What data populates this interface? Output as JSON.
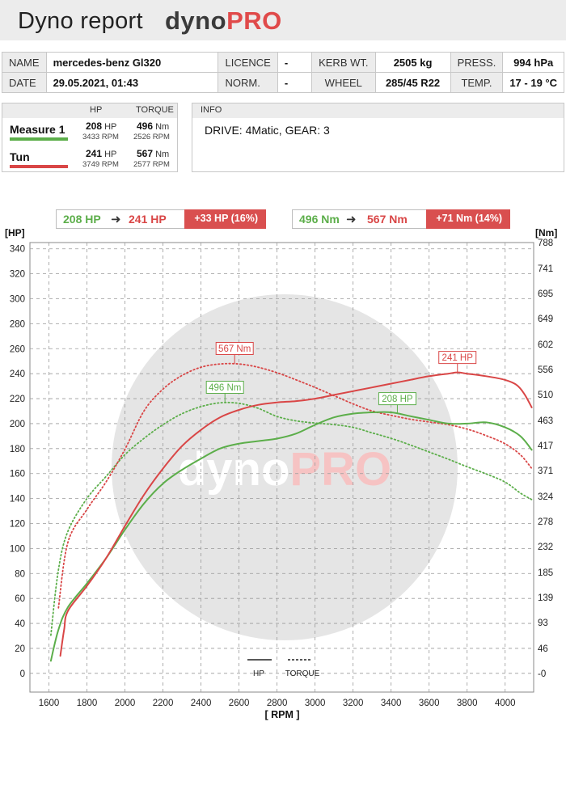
{
  "header": {
    "title": "Dyno report",
    "brand_dyno": "dyno",
    "brand_pro": "PRO"
  },
  "info": {
    "name_label": "NAME",
    "name": "mercedes-benz Gl320",
    "licence_label": "LICENCE",
    "licence": "-",
    "kerb_label": "KERB WT.",
    "kerb": "2505 kg",
    "press_label": "PRESS.",
    "press": "994 hPa",
    "date_label": "DATE",
    "date": "29.05.2021, 01:43",
    "norm_label": "NORM.",
    "norm": "-",
    "wheel_label": "WHEEL",
    "wheel": "285/45 R22",
    "temp_label": "TEMP.",
    "temp": "17 - 19 °C"
  },
  "measures": {
    "hp_label": "HP",
    "torque_label": "TORQUE",
    "items": [
      {
        "name": "Measure 1",
        "color": "#5cae4a",
        "hp": "208",
        "hp_unit": "HP",
        "hp_rpm": "3433 RPM",
        "torque": "496",
        "torque_unit": "Nm",
        "torque_rpm": "2526 RPM"
      },
      {
        "name": "Tun",
        "color": "#d94646",
        "hp": "241",
        "hp_unit": "HP",
        "hp_rpm": "3749 RPM",
        "torque": "567",
        "torque_unit": "Nm",
        "torque_rpm": "2577 RPM"
      }
    ]
  },
  "infobox": {
    "label": "INFO",
    "text": "DRIVE: 4Matic,  GEAR: 3"
  },
  "summary": {
    "hp": {
      "from": "208 HP",
      "to": "241 HP",
      "delta": "+33 HP  (16%)"
    },
    "torque": {
      "from": "496 Nm",
      "to": "567 Nm",
      "delta": "+71 Nm  (14%)"
    }
  },
  "chart_data": {
    "type": "line",
    "xlabel": "[ RPM ]",
    "ylabel_left": "[HP]",
    "ylabel_right": "[Nm]",
    "xlim": [
      1500,
      4150
    ],
    "ylim_left": [
      -15,
      345
    ],
    "ylim_right": [
      -34,
      788
    ],
    "x_ticks": [
      1600,
      1800,
      2000,
      2200,
      2400,
      2600,
      2800,
      3000,
      3200,
      3400,
      3600,
      3800,
      4000
    ],
    "y_ticks_left": [
      0,
      20,
      40,
      60,
      80,
      100,
      120,
      140,
      160,
      180,
      200,
      220,
      240,
      260,
      280,
      300,
      320,
      340
    ],
    "y_ticks_right": [
      {
        "v": 0,
        "label": "-0"
      },
      {
        "v": 46,
        "label": "46"
      },
      {
        "v": 93,
        "label": "93"
      },
      {
        "v": 139,
        "label": "139"
      },
      {
        "v": 185,
        "label": "185"
      },
      {
        "v": 232,
        "label": "232"
      },
      {
        "v": 278,
        "label": "278"
      },
      {
        "v": 324,
        "label": "324"
      },
      {
        "v": 371,
        "label": "371"
      },
      {
        "v": 417,
        "label": "417"
      },
      {
        "v": 463,
        "label": "463"
      },
      {
        "v": 510,
        "label": "510"
      },
      {
        "v": 556,
        "label": "556"
      },
      {
        "v": 602,
        "label": "602"
      },
      {
        "v": 649,
        "label": "649"
      },
      {
        "v": 695,
        "label": "695"
      },
      {
        "v": 741,
        "label": "741"
      },
      {
        "v": 788,
        "label": "788"
      }
    ],
    "grid": true,
    "legend": {
      "position": "bottom-center",
      "hp": "HP",
      "torque": "TORQUE"
    },
    "watermark": {
      "dyno": "dyno",
      "pro": "PRO"
    },
    "series": [
      {
        "name": "Measure 1",
        "kind": "HP",
        "axis": "left",
        "color": "#5cae4a",
        "style": "solid",
        "x": [
          1610,
          1650,
          1700,
          1800,
          1900,
          2000,
          2100,
          2200,
          2300,
          2400,
          2500,
          2600,
          2700,
          2800,
          2900,
          3000,
          3100,
          3200,
          3300,
          3400,
          3500,
          3600,
          3700,
          3800,
          3900,
          4000,
          4080,
          4140
        ],
        "y": [
          10,
          35,
          53,
          72,
          92,
          115,
          136,
          152,
          163,
          172,
          180,
          184,
          186,
          188,
          192,
          199,
          205,
          208,
          209,
          209,
          206,
          203,
          200,
          200,
          201,
          197,
          190,
          179
        ]
      },
      {
        "name": "Tun",
        "kind": "HP",
        "axis": "left",
        "color": "#d94646",
        "style": "solid",
        "x": [
          1660,
          1680,
          1700,
          1800,
          1900,
          2000,
          2100,
          2200,
          2300,
          2400,
          2500,
          2600,
          2700,
          2800,
          2900,
          3000,
          3100,
          3200,
          3300,
          3400,
          3500,
          3600,
          3700,
          3750,
          3800,
          3900,
          4000,
          4060,
          4100,
          4140
        ],
        "y": [
          14,
          35,
          50,
          70,
          92,
          118,
          143,
          164,
          182,
          195,
          205,
          211,
          215,
          217,
          218,
          220,
          223,
          226,
          229,
          232,
          235,
          238,
          240,
          241,
          240,
          238,
          235,
          231,
          224,
          213
        ]
      },
      {
        "name": "Measure 1",
        "kind": "TORQUE",
        "axis": "right",
        "color": "#5cae4a",
        "style": "dotted",
        "x": [
          1610,
          1650,
          1700,
          1800,
          1900,
          2000,
          2100,
          2200,
          2300,
          2400,
          2500,
          2600,
          2700,
          2800,
          2900,
          3000,
          3100,
          3200,
          3300,
          3400,
          3500,
          3600,
          3700,
          3800,
          3900,
          4000,
          4080,
          4140
        ],
        "y": [
          70,
          190,
          260,
          320,
          360,
          400,
          430,
          455,
          475,
          488,
          495,
          494,
          485,
          470,
          462,
          458,
          455,
          450,
          440,
          430,
          418,
          405,
          392,
          378,
          365,
          350,
          330,
          318
        ]
      },
      {
        "name": "Tun",
        "kind": "TORQUE",
        "axis": "right",
        "color": "#d94646",
        "style": "dotted",
        "x": [
          1650,
          1700,
          1800,
          1900,
          2000,
          2100,
          2200,
          2300,
          2400,
          2500,
          2600,
          2700,
          2800,
          2900,
          3000,
          3100,
          3200,
          3300,
          3400,
          3500,
          3600,
          3700,
          3800,
          3900,
          4000,
          4080,
          4140
        ],
        "y": [
          120,
          240,
          300,
          350,
          410,
          480,
          520,
          545,
          560,
          566,
          566,
          560,
          550,
          537,
          523,
          508,
          493,
          480,
          472,
          465,
          460,
          455,
          447,
          435,
          420,
          400,
          375
        ]
      }
    ],
    "annotations": [
      {
        "label": "567 Nm",
        "series": 3,
        "x": 2577,
        "y": 567,
        "color": "#d94646"
      },
      {
        "label": "496 Nm",
        "series": 2,
        "x": 2526,
        "y": 496,
        "color": "#5cae4a"
      },
      {
        "label": "241 HP",
        "series": 1,
        "x": 3749,
        "y": 241,
        "color": "#d94646"
      },
      {
        "label": "208 HP",
        "series": 0,
        "x": 3433,
        "y": 208,
        "color": "#5cae4a"
      }
    ]
  }
}
